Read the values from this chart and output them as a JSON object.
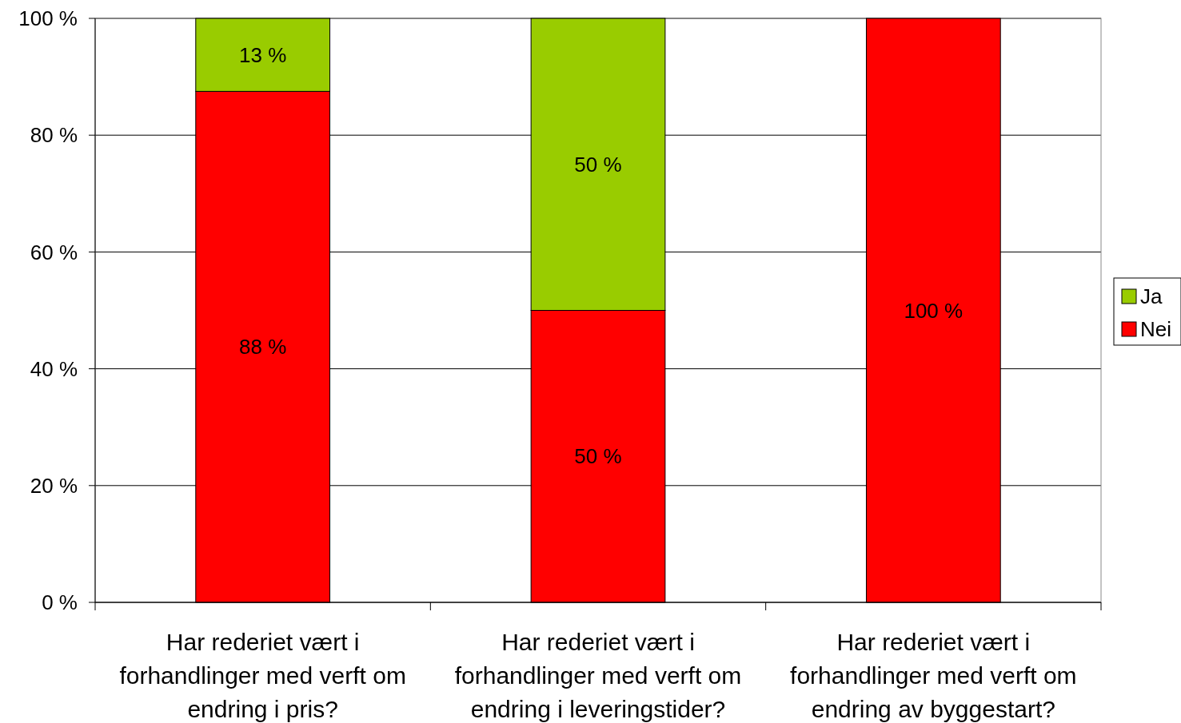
{
  "chart_data": {
    "type": "bar",
    "stacked": true,
    "categories": [
      "Har rederiet vært i forhandlinger med verft om endring i pris?",
      "Har rederiet vært i forhandlinger med verft om endring i leveringstider?",
      "Har rederiet vært i forhandlinger med verft om endring av byggestart?"
    ],
    "series": [
      {
        "name": "Nei",
        "color": "#ff0000",
        "values": [
          87.5,
          50,
          100
        ],
        "value_labels": [
          "88 %",
          "50 %",
          "100 %"
        ]
      },
      {
        "name": "Ja",
        "color": "#99cc00",
        "values": [
          12.5,
          50,
          0
        ],
        "value_labels": [
          "13 %",
          "50 %",
          null
        ]
      }
    ],
    "ylim": [
      0,
      100
    ],
    "yticks": [
      {
        "value": 0,
        "label": "0 %"
      },
      {
        "value": 20,
        "label": "20 %"
      },
      {
        "value": 40,
        "label": "40 %"
      },
      {
        "value": 60,
        "label": "60 %"
      },
      {
        "value": 80,
        "label": "80 %"
      },
      {
        "value": 100,
        "label": "100 %"
      }
    ],
    "grid": "y",
    "legend": "right"
  }
}
